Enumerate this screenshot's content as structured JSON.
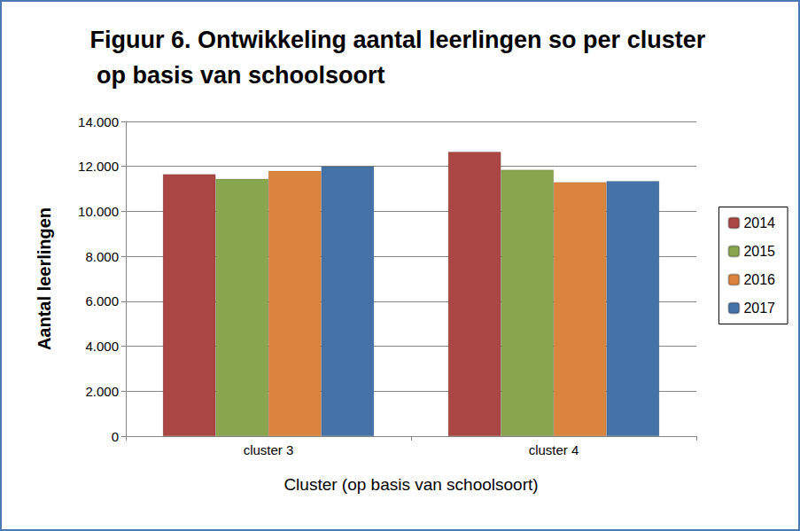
{
  "chart_data": {
    "type": "bar",
    "title": "Figuur 6. Ontwikkeling aantal leerlingen so per cluster op basis van schoolsoort",
    "x_label": "Cluster (op basis van schoolsoort)",
    "y_label": "Aantal leerlingen",
    "categories": [
      "cluster 3",
      "cluster 4"
    ],
    "series": [
      {
        "name": "2014",
        "color": "#aa4643",
        "values": [
          11650,
          12650
        ]
      },
      {
        "name": "2015",
        "color": "#89a54e",
        "values": [
          11450,
          11850
        ]
      },
      {
        "name": "2016",
        "color": "#db843d",
        "values": [
          11800,
          11300
        ]
      },
      {
        "name": "2017",
        "color": "#4572a7",
        "values": [
          12000,
          11350
        ]
      }
    ],
    "ylim": [
      0,
      14000
    ],
    "yticks": [
      0,
      {
        "value": 2000,
        "label": "2.000"
      },
      {
        "value": 4000,
        "label": "4.000"
      },
      {
        "value": 6000,
        "label": "6.000"
      },
      {
        "value": 8000,
        "label": "8.000"
      },
      {
        "value": 10000,
        "label": "10.000"
      },
      {
        "value": 12000,
        "label": "12.000"
      },
      {
        "value": 14000,
        "label": "14.000"
      }
    ],
    "grid": true,
    "legend": "right"
  }
}
